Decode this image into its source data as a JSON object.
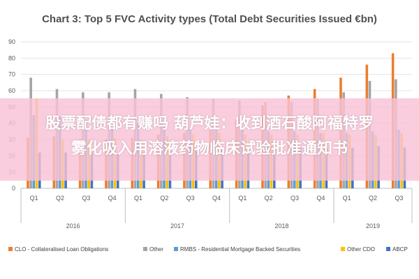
{
  "chart_data": {
    "type": "bar",
    "title": "Chart 3: Top 5 FVC Activity types (Total Debt Securities Issued €bn)",
    "xlabel": "",
    "ylabel": "",
    "ylim": [
      0,
      90
    ],
    "yticks": [
      0,
      10,
      20,
      30,
      40,
      50,
      60,
      70,
      80,
      90
    ],
    "grid": true,
    "legend_position": "bottom",
    "categories": [
      "Q1",
      "Q2",
      "Q3",
      "Q4",
      "Q1",
      "Q2",
      "Q3",
      "Q4",
      "Q1",
      "Q2",
      "Q3",
      "Q4",
      "Q1",
      "Q2",
      "Q3"
    ],
    "year_groups": [
      {
        "label": "2016",
        "count": 4
      },
      {
        "label": "2017",
        "count": 4
      },
      {
        "label": "2018",
        "count": 4
      },
      {
        "label": "2019",
        "count": 3
      }
    ],
    "series": [
      {
        "name": "CLO - Collateralised Loan Obligations",
        "color": "#ED7D31",
        "values": [
          31,
          32,
          30,
          30,
          31,
          33,
          34,
          36,
          42,
          51,
          57,
          61,
          68,
          76,
          83
        ]
      },
      {
        "name": "Other",
        "color": "#A5A5A5",
        "values": [
          68,
          61,
          59,
          59,
          61,
          58,
          56,
          55,
          54,
          53,
          53,
          55,
          59,
          66,
          67
        ]
      },
      {
        "name": "RMBS - Residential Mortgage Backed Securities",
        "color": "#5B9BD5",
        "values": [
          45,
          44,
          42,
          40,
          40,
          38,
          37,
          36,
          36,
          35,
          35,
          34,
          34,
          35,
          36
        ]
      },
      {
        "name": "Other CDO",
        "color": "#FFC000",
        "values": [
          55,
          30,
          30,
          31,
          30,
          32,
          33,
          34,
          33,
          33,
          33,
          34,
          33,
          33,
          34
        ]
      },
      {
        "name": "ABCP",
        "color": "#4472C4",
        "values": [
          22,
          22,
          22,
          21,
          22,
          23,
          23,
          24,
          24,
          24,
          25,
          25,
          25,
          26,
          25
        ]
      }
    ]
  },
  "overlay": {
    "line1": "股票配债都有赚吗 葫芦娃：收到酒石酸阿福特罗",
    "line2": "雾化吸入用溶液药物临床试验批准通知书"
  }
}
